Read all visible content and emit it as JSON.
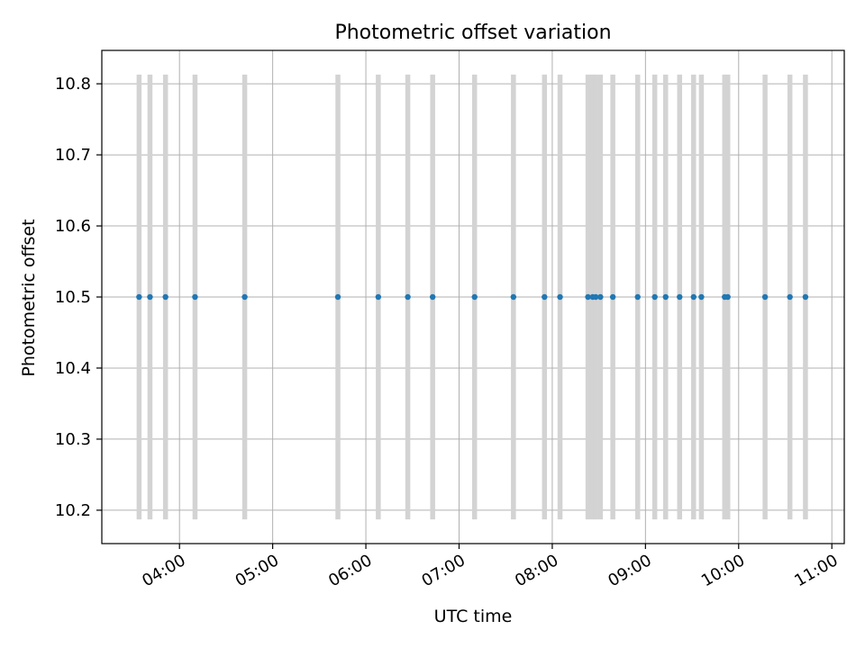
{
  "chart_data": {
    "type": "scatter",
    "title": "Photometric offset variation",
    "xlabel": "UTC time",
    "ylabel": "Photometric offset",
    "grid": true,
    "xlim": [
      "03:10",
      "11:08"
    ],
    "ylim": [
      10.153,
      10.847
    ],
    "y_ticks": [
      "10.2",
      "10.3",
      "10.4",
      "10.5",
      "10.6",
      "10.7",
      "10.8"
    ],
    "x_ticks": [
      "04:00",
      "05:00",
      "06:00",
      "07:00",
      "08:00",
      "09:00",
      "10:00",
      "11:00"
    ],
    "error_range": [
      10.187,
      10.813
    ],
    "colors": {
      "marker": "#1f77b4",
      "error_bar": "#d3d3d3",
      "grid": "#b0b0b0"
    },
    "series": [
      {
        "x": [
          "03:34",
          "03:41",
          "03:51",
          "04:10",
          "04:42",
          "05:42",
          "06:08",
          "06:27",
          "06:43",
          "07:10",
          "07:35",
          "07:55",
          "08:05",
          "08:23",
          "08:26",
          "08:28",
          "08:31",
          "08:39",
          "08:55",
          "09:06",
          "09:13",
          "09:22",
          "09:31",
          "09:36",
          "09:51",
          "09:53",
          "10:17",
          "10:33",
          "10:43"
        ],
        "y": [
          10.5,
          10.5,
          10.5,
          10.5,
          10.5,
          10.5,
          10.5,
          10.5,
          10.5,
          10.5,
          10.5,
          10.5,
          10.5,
          10.5,
          10.5,
          10.5,
          10.5,
          10.5,
          10.5,
          10.5,
          10.5,
          10.5,
          10.5,
          10.5,
          10.5,
          10.5,
          10.5,
          10.5,
          10.5
        ]
      }
    ]
  }
}
